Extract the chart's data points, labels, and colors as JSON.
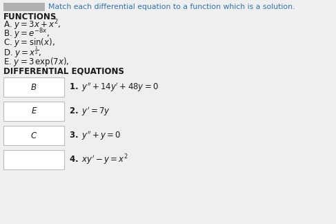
{
  "title": "Match each differential equation to a function which is a solution.",
  "title_color": "#2e74b5",
  "bg_color": "#efefef",
  "functions_label": "FUNCTIONS",
  "functions": [
    "A. $y = 3x + x^2$,",
    "B. $y = e^{-8x}$,",
    "C. $y = \\sin(x)$,",
    "D. $y = x^{\\frac{1}{2}}$,",
    "E. $y = 3\\,\\exp(7x)$,"
  ],
  "diff_eq_label": "DIFFERENTIAL EQUATIONS",
  "equations": [
    "$\\mathbf{1.}$ $y'' + 14y' + 48y = 0$",
    "$\\mathbf{2.}$ $y' = 7y$",
    "$\\mathbf{3.}$ $y'' + y = 0$",
    "$\\mathbf{4.}$ $xy' - y = x^2$"
  ],
  "answers": [
    "B",
    "E",
    "C",
    ""
  ],
  "box_color": "#ffffff",
  "box_edge_color": "#bbbbbb",
  "label_color": "#1a1a1a",
  "eq_color": "#1a1a1a",
  "answer_color": "#1a1a1a",
  "gray_box_color": "#b0b0b0",
  "title_fontsize": 7.8,
  "func_label_fontsize": 8.5,
  "func_fontsize": 8.5,
  "eq_fontsize": 8.5,
  "answer_fontsize": 8.5
}
